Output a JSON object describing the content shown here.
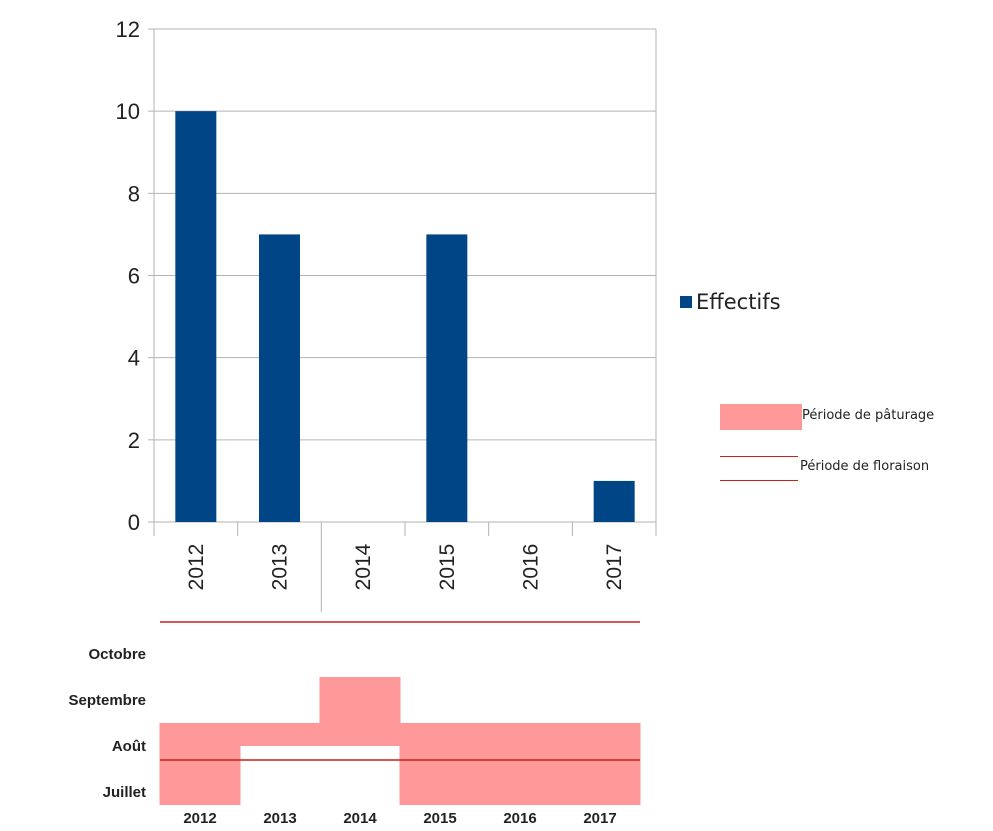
{
  "chart_data": [
    {
      "type": "bar",
      "categories": [
        "2012",
        "2013",
        "2014",
        "2015",
        "2016",
        "2017"
      ],
      "series": [
        {
          "name": "Effectifs",
          "values": [
            10,
            7,
            0,
            7,
            0,
            1
          ],
          "color": "#004586"
        }
      ],
      "ylim": [
        0,
        12
      ],
      "yticks": [
        "0",
        "2",
        "4",
        "6",
        "8",
        "10",
        "12"
      ],
      "grid": true,
      "legend": "right"
    },
    {
      "type": "bar",
      "subtype": "range",
      "categories": [
        "2012",
        "2013",
        "2014",
        "2015",
        "2016",
        "2017"
      ],
      "month_labels": [
        "Juillet",
        "Août",
        "Septembre",
        "Octobre"
      ],
      "series": [
        {
          "name": "Période de pâturage",
          "color": "#ff9999",
          "ranges": [
            [
              "Juillet",
              "Août"
            ],
            [
              "Août",
              "Août"
            ],
            [
              "Août",
              "Septembre"
            ],
            [
              "Juillet",
              "Août"
            ],
            [
              "Juillet",
              "Août"
            ],
            [
              "Juillet",
              "Août"
            ]
          ]
        },
        {
          "name": "Période de floraison",
          "color": "#c9211e",
          "value": "Août"
        }
      ],
      "legend": "right"
    }
  ],
  "legend": {
    "effectifs": "Effectifs",
    "paturage": "Période de pâturage",
    "floraison": "Période de floraison"
  }
}
